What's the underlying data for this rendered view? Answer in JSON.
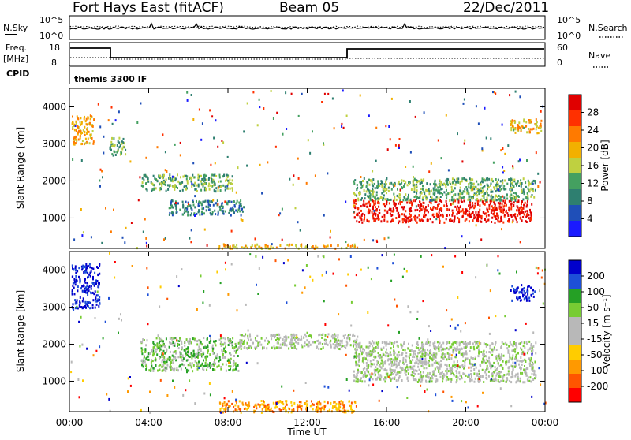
{
  "header": {
    "station": "Fort Hays East (fitACF)",
    "beam": "Beam 05",
    "date": "22/Dec/2011"
  },
  "status_strip": {
    "left_label_nsky": "N.Sky",
    "right_label_nsearch": "N.Search",
    "left_label_freq": "Freq.",
    "left_label_freq_unit": "[MHz]",
    "right_label_nave": "Nave",
    "left_label_cpid": "CPID",
    "cpid_text": "themis 3300 IF",
    "nsky_ticks": [
      "10^5",
      "10^0"
    ],
    "nsearch_ticks": [
      "10^5",
      "10^0"
    ],
    "freq_ticks": [
      "18",
      "8"
    ],
    "nave_ticks": [
      "60",
      "0"
    ]
  },
  "colors": {
    "power_scale": [
      "#1a1aff",
      "#1f4fb8",
      "#2e7f70",
      "#44a060",
      "#bfd040",
      "#f2b000",
      "#ff7a00",
      "#ff3000",
      "#e00000"
    ],
    "velocity_scale": [
      "#0000cc",
      "#1d4fd8",
      "#25a025",
      "#77cc33",
      "#b8b8b8",
      "#b8b8b8",
      "#ffcc00",
      "#ff9900",
      "#ff5500",
      "#ff0000"
    ]
  },
  "chart_data": [
    {
      "type": "heatmap",
      "name": "power-panel",
      "xlabel": "",
      "ylabel": "Slant Range [km]",
      "xlim": [
        0,
        24
      ],
      "ylim": [
        180,
        4500
      ],
      "ytick_values": [
        1000,
        2000,
        3000,
        4000
      ],
      "ytick_labels": [
        "1000",
        "2000",
        "3000",
        "4000"
      ],
      "colorbar": {
        "label": "Power [dB]",
        "ticks": [
          "4",
          "8",
          "12",
          "16",
          "20",
          "24",
          "28"
        ]
      },
      "regions": [
        {
          "t0": 14.3,
          "t1": 23.3,
          "r0": 900,
          "r1": 1500,
          "level": 8,
          "kind": "strong"
        },
        {
          "t0": 14.3,
          "t1": 23.5,
          "r0": 1500,
          "r1": 2100,
          "level": 3,
          "kind": "edge"
        },
        {
          "t0": 3.6,
          "t1": 8.2,
          "r0": 1750,
          "r1": 2200,
          "level": 3,
          "kind": "moderate"
        },
        {
          "t0": 5.0,
          "t1": 8.8,
          "r0": 1100,
          "r1": 1500,
          "level": 2,
          "kind": "moderate"
        },
        {
          "t0": 0.1,
          "t1": 1.2,
          "r0": 3000,
          "r1": 3800,
          "level": 5,
          "kind": "patch"
        },
        {
          "t0": 2.0,
          "t1": 2.8,
          "r0": 2700,
          "r1": 3200,
          "level": 3,
          "kind": "patch"
        },
        {
          "t0": 22.2,
          "t1": 23.8,
          "r0": 3300,
          "r1": 3700,
          "level": 5,
          "kind": "patch"
        },
        {
          "t0": 7.5,
          "t1": 14.5,
          "r0": 200,
          "r1": 320,
          "level": 5,
          "kind": "ground"
        }
      ]
    },
    {
      "type": "heatmap",
      "name": "velocity-panel",
      "xlabel": "Time UT",
      "ylabel": "Slant Range [km]",
      "xlim": [
        0,
        24
      ],
      "ylim": [
        180,
        4500
      ],
      "xtick_values": [
        0,
        4,
        8,
        12,
        16,
        20,
        24
      ],
      "xtick_labels": [
        "00:00",
        "04:00",
        "08:00",
        "12:00",
        "16:00",
        "20:00",
        "00:00"
      ],
      "ytick_values": [
        1000,
        2000,
        3000,
        4000
      ],
      "ytick_labels": [
        "1000",
        "2000",
        "3000",
        "4000"
      ],
      "colorbar": {
        "label": "Velocity [m s⁻¹]",
        "ticks": [
          "200",
          "100",
          "50",
          "15",
          "-15",
          "-50",
          "-100",
          "-200"
        ]
      },
      "regions": [
        {
          "t0": 14.3,
          "t1": 23.5,
          "r0": 1000,
          "r1": 2100,
          "level": 4,
          "kind": "gray"
        },
        {
          "t0": 3.6,
          "t1": 8.5,
          "r0": 1300,
          "r1": 2200,
          "level": 3,
          "kind": "green"
        },
        {
          "t0": 7.5,
          "t1": 14.5,
          "r0": 180,
          "r1": 500,
          "level": 7,
          "kind": "orange"
        },
        {
          "t0": 0.1,
          "t1": 1.5,
          "r0": 3000,
          "r1": 4200,
          "level": 0,
          "kind": "blue"
        },
        {
          "t0": 22.2,
          "t1": 23.5,
          "r0": 3200,
          "r1": 3600,
          "level": 0,
          "kind": "blue"
        },
        {
          "t0": 8.5,
          "t1": 14.5,
          "r0": 1900,
          "r1": 2300,
          "level": 4,
          "kind": "gray"
        }
      ]
    }
  ]
}
